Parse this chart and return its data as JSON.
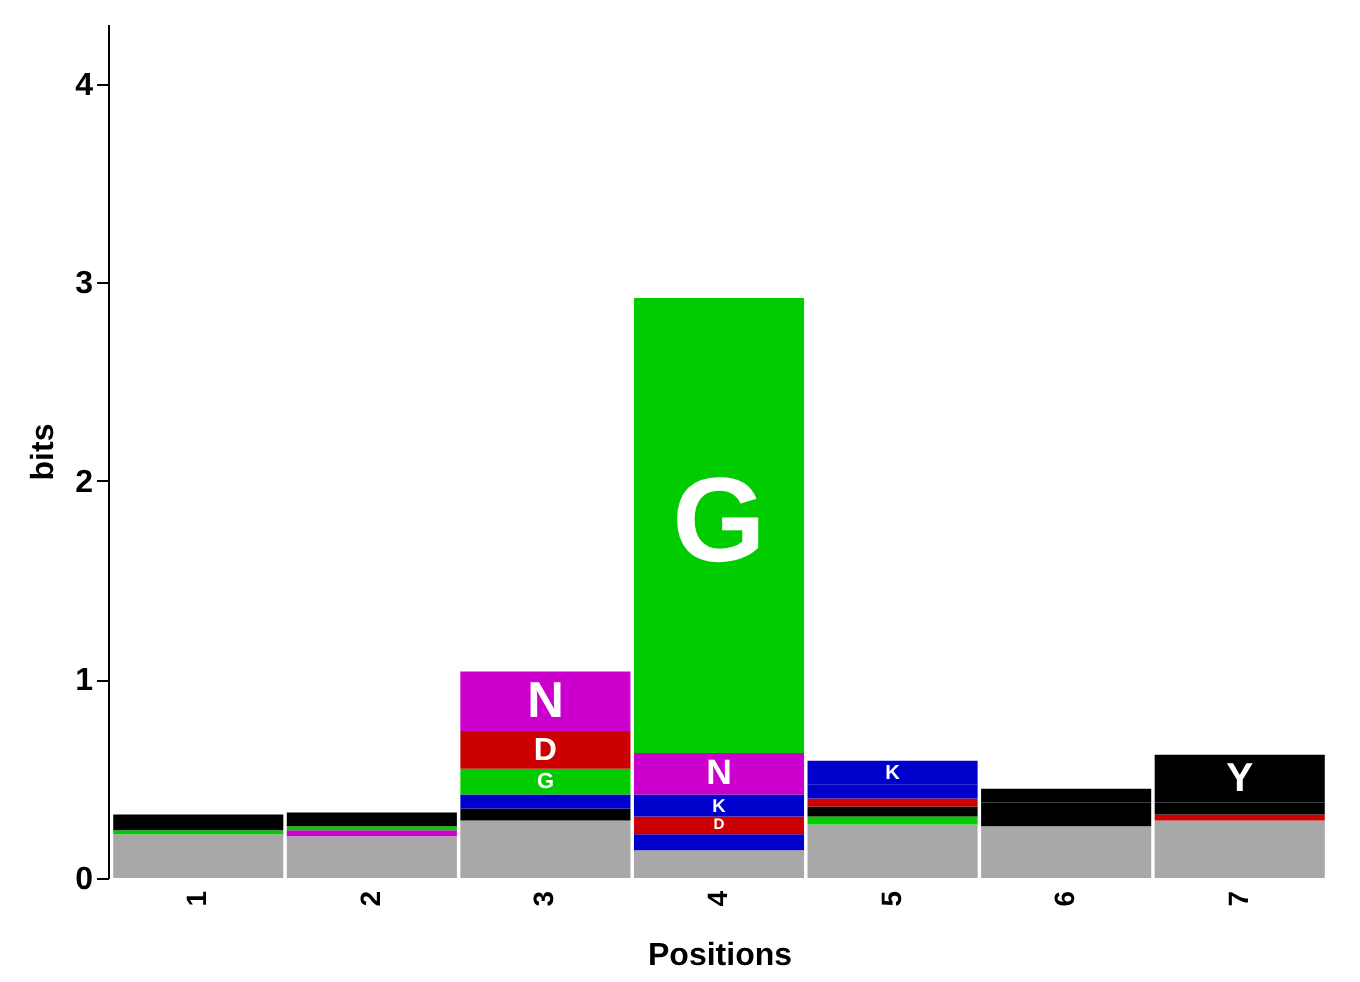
{
  "chart_data": {
    "type": "bar",
    "stacked": true,
    "xlabel": "Positions",
    "ylabel": "bits",
    "categories": [
      "1",
      "2",
      "3",
      "4",
      "5",
      "6",
      "7"
    ],
    "ylim": [
      0,
      4.3
    ],
    "yticks": [
      0,
      1,
      2,
      3,
      4
    ],
    "grid": false,
    "series": [
      {
        "color": "#a8a8a8",
        "values": [
          0.22,
          0.21,
          0.29,
          0.14,
          0.27,
          0.26,
          0.29
        ]
      },
      {
        "color": "#00cc00",
        "values": [
          0.02,
          null,
          null,
          null,
          0.04,
          null,
          null
        ]
      },
      {
        "color": "#cc00cc",
        "values": [
          null,
          0.03,
          null,
          null,
          null,
          null,
          null
        ]
      },
      {
        "color": "#00cc00",
        "values": [
          null,
          0.02,
          null,
          null,
          null,
          null,
          null
        ]
      },
      {
        "color": "#000000",
        "values": [
          0.08,
          0.07,
          0.06,
          null,
          0.05,
          0.12,
          null
        ]
      },
      {
        "color": "#cc0000",
        "values": [
          null,
          null,
          null,
          null,
          0.04,
          null,
          0.03
        ]
      },
      {
        "color": "#0000cc",
        "values": [
          null,
          null,
          0.07,
          0.08,
          0.07,
          null,
          null
        ]
      },
      {
        "color": "#000000",
        "values": [
          null,
          null,
          null,
          null,
          null,
          0.07,
          0.06
        ]
      },
      {
        "name": "G",
        "color": "#00cc00",
        "values": [
          null,
          null,
          0.13,
          null,
          null,
          null,
          null
        ]
      },
      {
        "name": "D",
        "color": "#cc0000",
        "values": [
          null,
          null,
          0.19,
          0.09,
          null,
          null,
          null
        ]
      },
      {
        "name": "K",
        "color": "#0000cc",
        "values": [
          null,
          null,
          null,
          0.11,
          0.12,
          null,
          null
        ]
      },
      {
        "name": "N",
        "color": "#cc00cc",
        "values": [
          null,
          null,
          0.3,
          0.21,
          null,
          null,
          null
        ]
      },
      {
        "name": "G",
        "color": "#00cc00",
        "values": [
          null,
          null,
          null,
          2.29,
          null,
          null,
          null
        ]
      },
      {
        "name": "Y",
        "color": "#000000",
        "values": [
          null,
          null,
          null,
          null,
          null,
          null,
          0.24
        ]
      }
    ]
  }
}
